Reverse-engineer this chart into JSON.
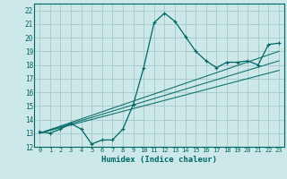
{
  "title": "",
  "xlabel": "Humidex (Indice chaleur)",
  "ylabel": "",
  "bg_color": "#cce8e8",
  "grid_color": "#aacccc",
  "line_color": "#006666",
  "xlim": [
    -0.5,
    23.5
  ],
  "ylim": [
    12,
    22.5
  ],
  "xticks": [
    0,
    1,
    2,
    3,
    4,
    5,
    6,
    7,
    8,
    9,
    10,
    11,
    12,
    13,
    14,
    15,
    16,
    17,
    18,
    19,
    20,
    21,
    22,
    23
  ],
  "yticks": [
    12,
    13,
    14,
    15,
    16,
    17,
    18,
    19,
    20,
    21,
    22
  ],
  "main_line_x": [
    0,
    1,
    2,
    3,
    4,
    5,
    6,
    7,
    8,
    9,
    10,
    11,
    12,
    13,
    14,
    15,
    16,
    17,
    18,
    19,
    20,
    21,
    22,
    23
  ],
  "main_line_y": [
    13.1,
    13.0,
    13.3,
    13.7,
    13.3,
    12.2,
    12.5,
    12.5,
    13.3,
    15.1,
    17.8,
    21.1,
    21.8,
    21.2,
    20.1,
    19.0,
    18.3,
    17.8,
    18.2,
    18.2,
    18.3,
    18.0,
    19.5,
    19.6
  ],
  "reg_lines": [
    {
      "x": [
        0,
        23
      ],
      "y": [
        13.0,
        18.3
      ]
    },
    {
      "x": [
        0,
        23
      ],
      "y": [
        13.0,
        17.6
      ]
    },
    {
      "x": [
        0,
        23
      ],
      "y": [
        13.0,
        19.0
      ]
    }
  ]
}
